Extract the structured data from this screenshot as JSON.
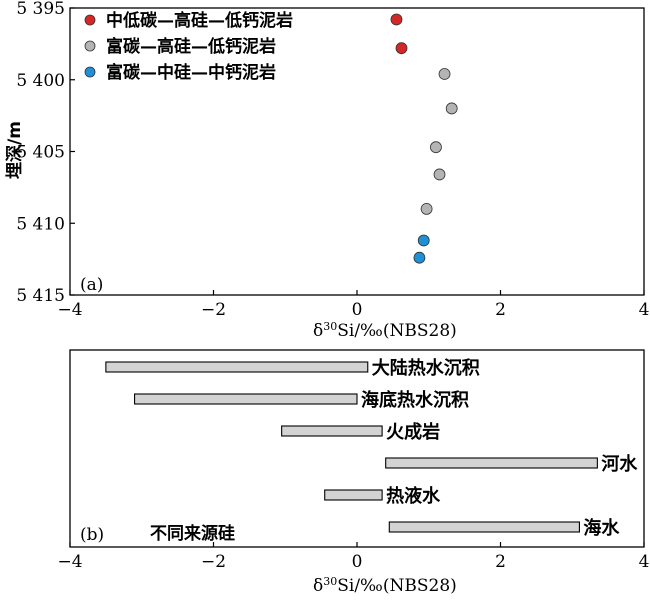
{
  "chart_data": [
    {
      "type": "scatter",
      "panel_label": "(a)",
      "xlabel_sym": "δ",
      "xlabel_sup": "30",
      "xlabel_rest": "Si/‰(NBS28)",
      "ylabel": "埋深/m",
      "xlim": [
        -4,
        4
      ],
      "ylim": [
        5395,
        5415
      ],
      "y_inverted": true,
      "x_ticks": [
        "−4",
        "−2",
        "0",
        "2",
        "4"
      ],
      "y_ticks": [
        "5 395",
        "5 400",
        "5 405",
        "5 410",
        "5 415"
      ],
      "series": [
        {
          "name": "中低碳—高硅—低钙泥岩",
          "color": "#d62728",
          "points": [
            [
              0.55,
              5395.8
            ],
            [
              0.62,
              5397.8
            ]
          ]
        },
        {
          "name": "富碳—高硅—低钙泥岩",
          "color": "#b4b4b4",
          "points": [
            [
              1.22,
              5399.6
            ],
            [
              1.32,
              5402.0
            ],
            [
              1.1,
              5404.7
            ],
            [
              1.15,
              5406.6
            ],
            [
              0.97,
              5409.0
            ]
          ]
        },
        {
          "name": "富碳—中硅—中钙泥岩",
          "color": "#1f8fd6",
          "points": [
            [
              0.93,
              5411.2
            ],
            [
              0.87,
              5412.4
            ]
          ]
        }
      ],
      "legend_position": "top-left"
    },
    {
      "type": "bar",
      "orientation": "horizontal-range",
      "panel_label": "(b)",
      "annotation": "不同来源硅",
      "xlabel_sym": "δ",
      "xlabel_sup": "30",
      "xlabel_rest": "Si/‰(NBS28)",
      "xlim": [
        -4,
        4
      ],
      "x_ticks": [
        "−4",
        "−2",
        "0",
        "2",
        "4"
      ],
      "bar_color": "#d3d3d3",
      "ranges": [
        {
          "label": "大陆热水沉积",
          "min": -3.5,
          "max": 0.15
        },
        {
          "label": "海底热水沉积",
          "min": -3.1,
          "max": 0.0
        },
        {
          "label": "火成岩",
          "min": -1.05,
          "max": 0.35
        },
        {
          "label": "河水",
          "min": 0.4,
          "max": 3.35
        },
        {
          "label": "热液水",
          "min": -0.45,
          "max": 0.35
        },
        {
          "label": "海水",
          "min": 0.45,
          "max": 3.1
        }
      ]
    }
  ]
}
